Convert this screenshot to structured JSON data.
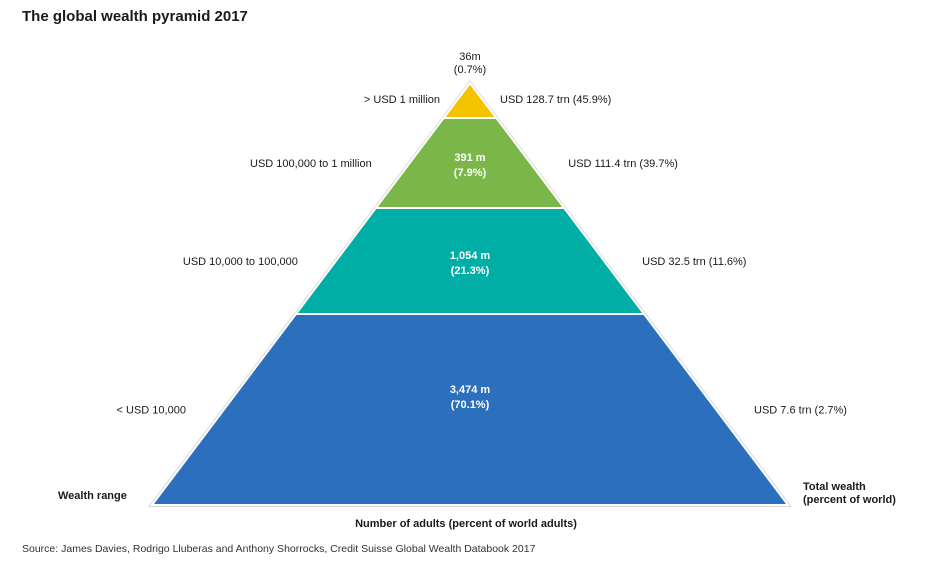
{
  "chart_data": {
    "type": "pyramid",
    "title": "The global wealth pyramid 2017",
    "xlabel": "Number of adults (percent of world adults)",
    "left_axis_label": "Wealth range",
    "right_axis_label_line1": "Total wealth",
    "right_axis_label_line2": "(percent of world)",
    "source": "Source: James Davies, Rodrigo Lluberas and Anthony Shorrocks, Credit Suisse Global Wealth Databook 2017",
    "tiers": [
      {
        "wealth_range": "> USD 1 million",
        "adults_millions": 36,
        "adults_label": "36m",
        "adults_pct": 0.7,
        "adults_pct_label": "(0.7%)",
        "total_wealth_trn": 128.7,
        "wealth_pct": 45.9,
        "wealth_label": "USD 128.7 trn (45.9%)",
        "color": "#f5c400"
      },
      {
        "wealth_range": "USD 100,000  to 1 million",
        "adults_millions": 391,
        "adults_label": "391 m",
        "adults_pct": 7.9,
        "adults_pct_label": "(7.9%)",
        "total_wealth_trn": 111.4,
        "wealth_pct": 39.7,
        "wealth_label": "USD 111.4 trn (39.7%)",
        "color": "#7ab648"
      },
      {
        "wealth_range": "USD 10,000  to 100,000",
        "adults_millions": 1054,
        "adults_label": "1,054 m",
        "adults_pct": 21.3,
        "adults_pct_label": "(21.3%)",
        "total_wealth_trn": 32.5,
        "wealth_pct": 11.6,
        "wealth_label": "USD 32.5 trn (11.6%)",
        "color": "#00aea6"
      },
      {
        "wealth_range": "<  USD 10,000",
        "adults_millions": 3474,
        "adults_label": "3,474 m",
        "adults_pct": 70.1,
        "adults_pct_label": "(70.1%)",
        "total_wealth_trn": 7.6,
        "wealth_pct": 2.7,
        "wealth_label": "USD 7.6 trn (2.7%)",
        "color": "#2b6fbd"
      }
    ]
  }
}
